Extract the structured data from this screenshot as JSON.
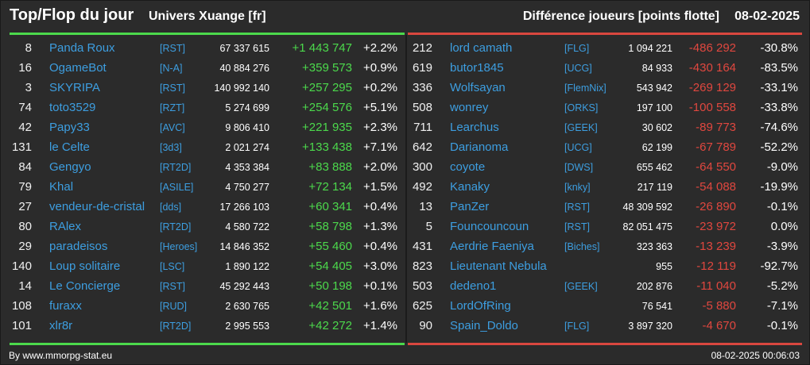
{
  "header": {
    "title": "Top/Flop du jour",
    "universe": "Univers Xuange [fr]",
    "metric": "Différence joueurs [points flotte]",
    "date": "08-02-2025"
  },
  "colors": {
    "background": "#2b2b2b",
    "top_accent": "#4cd94c",
    "flop_accent": "#d9473f",
    "name_link": "#3d9ee0"
  },
  "top": [
    {
      "rank": "8",
      "name": "Panda Roux",
      "alliance": "[RST]",
      "points": "67 337 615",
      "diff": "+1 443 747",
      "pct": "+2.2%"
    },
    {
      "rank": "16",
      "name": "OgameBot",
      "alliance": "[N-A]",
      "points": "40 884 276",
      "diff": "+359 573",
      "pct": "+0.9%"
    },
    {
      "rank": "3",
      "name": "SKYRIPA",
      "alliance": "[RST]",
      "points": "140 992 140",
      "diff": "+257 295",
      "pct": "+0.2%"
    },
    {
      "rank": "74",
      "name": "toto3529",
      "alliance": "[RZT]",
      "points": "5 274 699",
      "diff": "+254 576",
      "pct": "+5.1%"
    },
    {
      "rank": "42",
      "name": "Papy33",
      "alliance": "[AVC]",
      "points": "9 806 410",
      "diff": "+221 935",
      "pct": "+2.3%"
    },
    {
      "rank": "131",
      "name": "le Celte",
      "alliance": "[3d3]",
      "points": "2 021 274",
      "diff": "+133 438",
      "pct": "+7.1%"
    },
    {
      "rank": "84",
      "name": "Gengyo",
      "alliance": "[RT2D]",
      "points": "4 353 384",
      "diff": "+83 888",
      "pct": "+2.0%"
    },
    {
      "rank": "79",
      "name": "Khal",
      "alliance": "[ASILE]",
      "points": "4 750 277",
      "diff": "+72 134",
      "pct": "+1.5%"
    },
    {
      "rank": "27",
      "name": "vendeur-de-cristal",
      "alliance": "[dds]",
      "points": "17 266 103",
      "diff": "+60 341",
      "pct": "+0.4%"
    },
    {
      "rank": "80",
      "name": "RAlex",
      "alliance": "[RT2D]",
      "points": "4 580 722",
      "diff": "+58 798",
      "pct": "+1.3%"
    },
    {
      "rank": "29",
      "name": "paradeisos",
      "alliance": "[Heroes]",
      "points": "14 846 352",
      "diff": "+55 460",
      "pct": "+0.4%"
    },
    {
      "rank": "140",
      "name": "Loup solitaire",
      "alliance": "[LSC]",
      "points": "1 890 122",
      "diff": "+54 405",
      "pct": "+3.0%"
    },
    {
      "rank": "14",
      "name": "Le Concierge",
      "alliance": "[RST]",
      "points": "45 292 443",
      "diff": "+50 198",
      "pct": "+0.1%"
    },
    {
      "rank": "108",
      "name": "furaxx",
      "alliance": "[RUD]",
      "points": "2 630 765",
      "diff": "+42 501",
      "pct": "+1.6%"
    },
    {
      "rank": "101",
      "name": "xlr8r",
      "alliance": "[RT2D]",
      "points": "2 995 553",
      "diff": "+42 272",
      "pct": "+1.4%"
    }
  ],
  "flop": [
    {
      "rank": "212",
      "name": "lord camath",
      "alliance": "[FLG]",
      "points": "1 094 221",
      "diff": "-486 292",
      "pct": "-30.8%"
    },
    {
      "rank": "619",
      "name": "butor1845",
      "alliance": "[UCG]",
      "points": "84 933",
      "diff": "-430 164",
      "pct": "-83.5%"
    },
    {
      "rank": "336",
      "name": "Wolfsayan",
      "alliance": "[FlemNix]",
      "points": "543 942",
      "diff": "-269 129",
      "pct": "-33.1%"
    },
    {
      "rank": "508",
      "name": "wonrey",
      "alliance": "[ORKS]",
      "points": "197 100",
      "diff": "-100 558",
      "pct": "-33.8%"
    },
    {
      "rank": "711",
      "name": "Learchus",
      "alliance": "[GEEK]",
      "points": "30 602",
      "diff": "-89 773",
      "pct": "-74.6%"
    },
    {
      "rank": "642",
      "name": "Darianoma",
      "alliance": "[UCG]",
      "points": "62 199",
      "diff": "-67 789",
      "pct": "-52.2%"
    },
    {
      "rank": "300",
      "name": "coyote",
      "alliance": "[DWS]",
      "points": "655 462",
      "diff": "-64 550",
      "pct": "-9.0%"
    },
    {
      "rank": "492",
      "name": "Kanaky",
      "alliance": "[knky]",
      "points": "217 119",
      "diff": "-54 088",
      "pct": "-19.9%"
    },
    {
      "rank": "13",
      "name": "PanZer",
      "alliance": "[RST]",
      "points": "48 309 592",
      "diff": "-26 890",
      "pct": "-0.1%"
    },
    {
      "rank": "5",
      "name": "Founcouncoun",
      "alliance": "[RST]",
      "points": "82 051 475",
      "diff": "-23 972",
      "pct": "0.0%"
    },
    {
      "rank": "431",
      "name": "Aerdrie Faeniya",
      "alliance": "[Biches]",
      "points": "323 363",
      "diff": "-13 239",
      "pct": "-3.9%"
    },
    {
      "rank": "823",
      "name": "Lieutenant Nebula",
      "alliance": "",
      "points": "955",
      "diff": "-12 119",
      "pct": "-92.7%"
    },
    {
      "rank": "503",
      "name": "dedeno1",
      "alliance": "[GEEK]",
      "points": "202 876",
      "diff": "-11 040",
      "pct": "-5.2%"
    },
    {
      "rank": "625",
      "name": "LordOfRing",
      "alliance": "",
      "points": "76 541",
      "diff": "-5 880",
      "pct": "-7.1%"
    },
    {
      "rank": "90",
      "name": "Spain_Doldo",
      "alliance": "[FLG]",
      "points": "3 897 320",
      "diff": "-4 670",
      "pct": "-0.1%"
    }
  ],
  "footer": {
    "source": "By www.mmorpg-stat.eu",
    "timestamp": "08-02-2025 00:06:03"
  }
}
